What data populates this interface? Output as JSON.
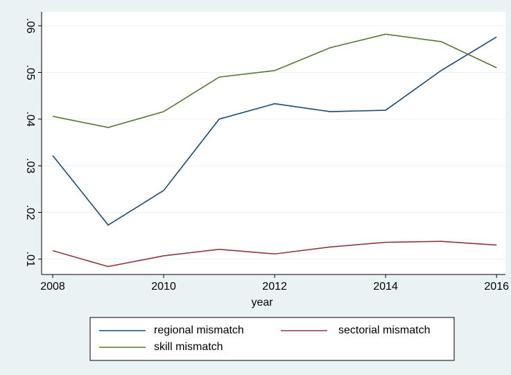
{
  "chart_data": {
    "type": "line",
    "x_label": "year",
    "x": [
      2008,
      2009,
      2010,
      2011,
      2012,
      2013,
      2014,
      2015,
      2016
    ],
    "series": [
      {
        "name": "regional mismatch",
        "color": "#1a476f",
        "values": [
          0.0322,
          0.0173,
          0.0247,
          0.04,
          0.0433,
          0.0416,
          0.0419,
          0.0504,
          0.0576
        ]
      },
      {
        "name": "sectorial mismatch",
        "color": "#90353b",
        "values": [
          0.0118,
          0.0084,
          0.0107,
          0.0121,
          0.0111,
          0.0126,
          0.0136,
          0.0138,
          0.013
        ]
      },
      {
        "name": "skill mismatch",
        "color": "#55752f",
        "values": [
          0.0406,
          0.0382,
          0.0416,
          0.049,
          0.0504,
          0.0553,
          0.0582,
          0.0566,
          0.051
        ]
      }
    ],
    "xlim": [
      2007.8,
      2016.16
    ],
    "xticks": [
      2008,
      2010,
      2012,
      2014,
      2016
    ],
    "ylim": [
      0.0067,
      0.063
    ],
    "yticks": [
      {
        "value": 0.01,
        "label": ".01"
      },
      {
        "value": 0.02,
        "label": ".02"
      },
      {
        "value": 0.03,
        "label": ".03"
      },
      {
        "value": 0.04,
        "label": ".04"
      },
      {
        "value": 0.05,
        "label": ".05"
      },
      {
        "value": 0.06,
        "label": ".06"
      }
    ],
    "grid": true
  }
}
